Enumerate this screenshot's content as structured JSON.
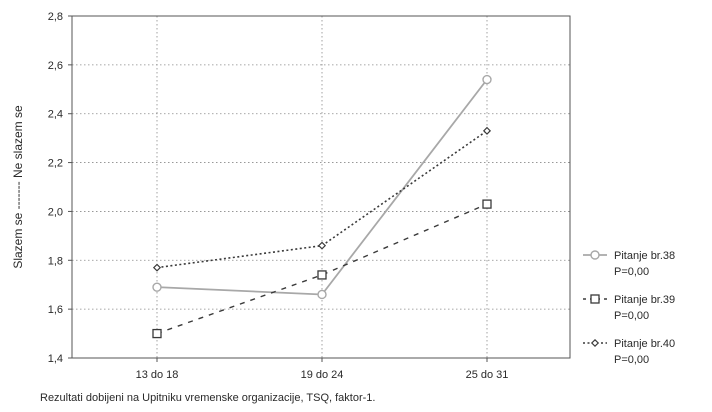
{
  "chart_data": {
    "type": "line",
    "categories": [
      "13 do 18",
      "19 do 24",
      "25 do 31"
    ],
    "ylim": [
      1.4,
      2.8
    ],
    "yticks": [
      "1,4",
      "1,6",
      "1,8",
      "2,0",
      "2,2",
      "2,4",
      "2,6",
      "2,8"
    ],
    "ylabel": "Slazem se ------- Ne slazem se",
    "grid": true,
    "legend_position": "right",
    "series": [
      {
        "name": "Pitanje br.38",
        "note": "P=0,00",
        "marker": "circle",
        "style": "solid",
        "color": "#a8a8a8",
        "values": [
          1.69,
          1.66,
          2.54
        ]
      },
      {
        "name": "Pitanje br.39",
        "note": "P=0,00",
        "marker": "square",
        "style": "dashed",
        "color": "#3a3a3a",
        "values": [
          1.5,
          1.74,
          2.03
        ]
      },
      {
        "name": "Pitanje br.40",
        "note": "P=0,00",
        "marker": "diamond",
        "style": "dotted",
        "color": "#3a3a3a",
        "values": [
          1.77,
          1.86,
          2.33
        ]
      }
    ]
  },
  "caption": "Rezultati dobijeni na Upitniku vremenske organizacije, TSQ, faktor-1."
}
